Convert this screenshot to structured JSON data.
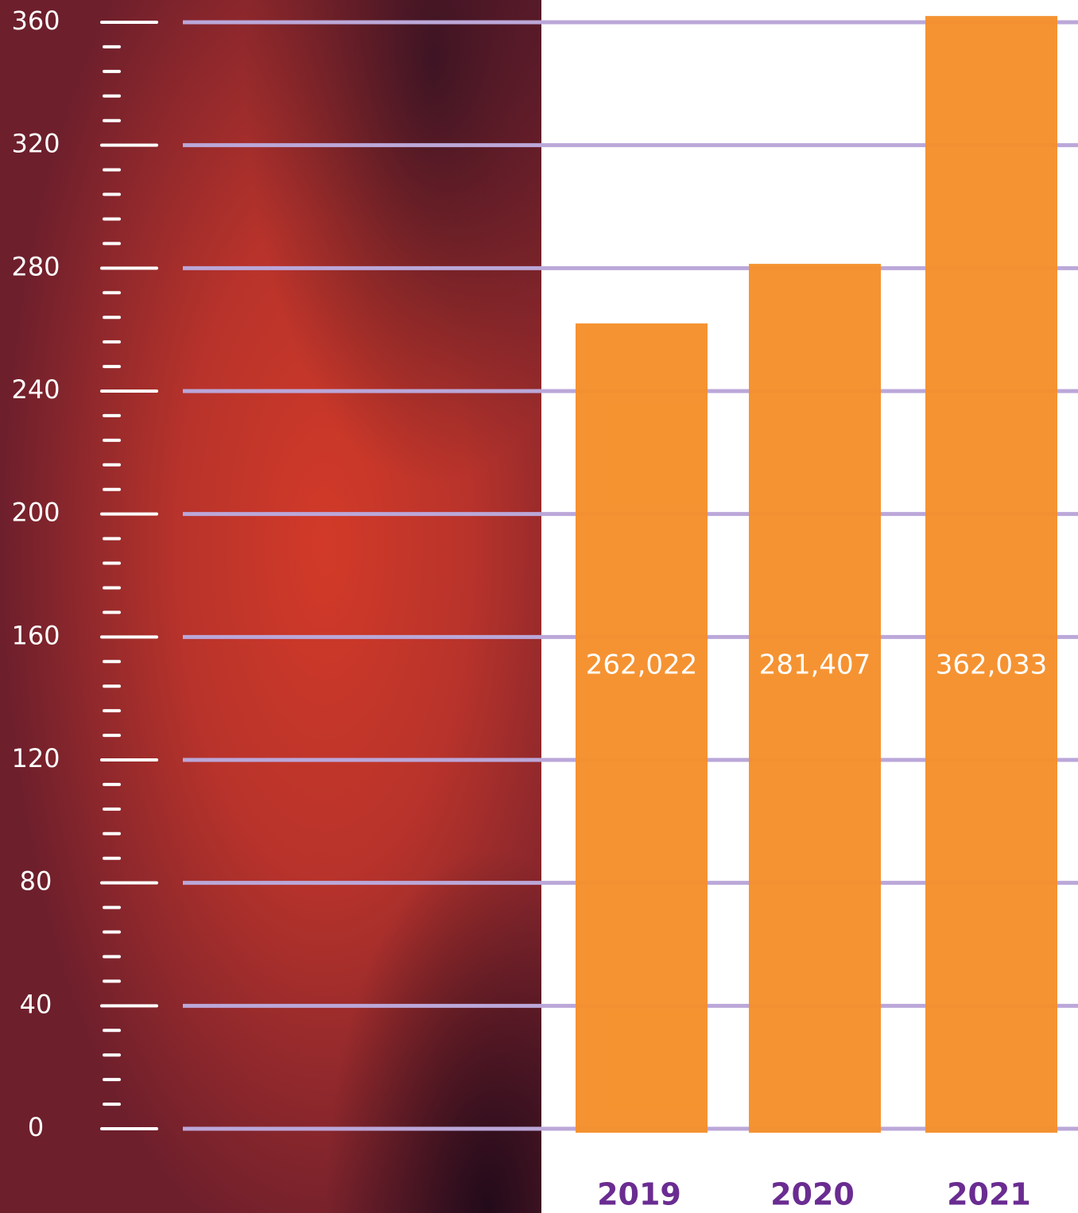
{
  "chart_data": {
    "type": "bar",
    "categories": [
      "2019",
      "2020",
      "2021"
    ],
    "values": [
      262.022,
      281.407,
      362.033
    ],
    "value_labels": [
      "262,022",
      "281,407",
      "362,033"
    ],
    "color": "#f5902b",
    "ylim": [
      0,
      360
    ],
    "yticks": [
      0,
      40,
      80,
      120,
      160,
      200,
      240,
      280,
      320,
      360
    ],
    "grid": true,
    "grid_color": "#bba7d8"
  }
}
